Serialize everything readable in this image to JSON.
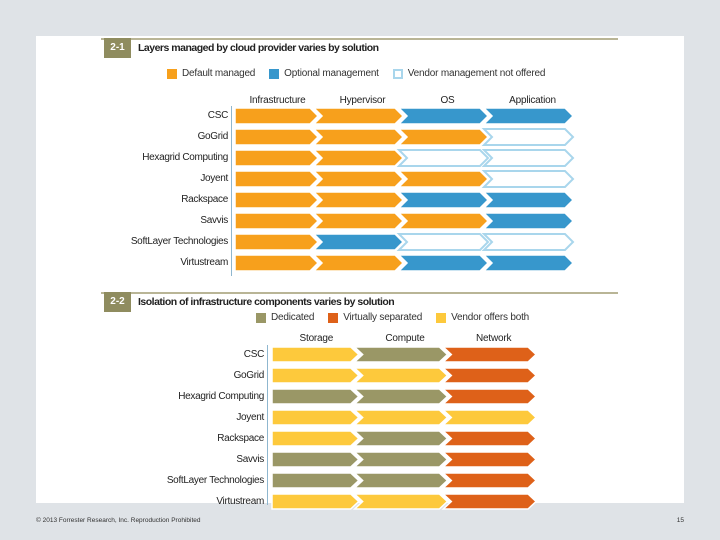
{
  "footer": {
    "copyright": "© 2013 Forrester Research, Inc. Reproduction Prohibited",
    "page_number": "15"
  },
  "chart_data": [
    {
      "type": "table",
      "figure_number": "2-1",
      "title": "Layers managed by cloud provider varies by solution",
      "legend": [
        {
          "key": "default",
          "label": "Default managed",
          "color": "#f7a01c",
          "fill": true
        },
        {
          "key": "optional",
          "label": "Optional management",
          "color": "#3797cc",
          "fill": true
        },
        {
          "key": "none",
          "label": "Vendor management not offered",
          "color": "#a9d6ec",
          "fill": false
        }
      ],
      "columns": [
        "Infrastructure",
        "Hypervisor",
        "OS",
        "Application"
      ],
      "rows": [
        {
          "label": "CSC",
          "values": [
            "default",
            "default",
            "optional",
            "optional"
          ]
        },
        {
          "label": "GoGrid",
          "values": [
            "default",
            "default",
            "default",
            "none"
          ]
        },
        {
          "label": "Hexagrid Computing",
          "values": [
            "default",
            "default",
            "none",
            "none"
          ]
        },
        {
          "label": "Joyent",
          "values": [
            "default",
            "default",
            "default",
            "none"
          ]
        },
        {
          "label": "Rackspace",
          "values": [
            "default",
            "default",
            "optional",
            "optional"
          ]
        },
        {
          "label": "Savvis",
          "values": [
            "default",
            "default",
            "default",
            "optional"
          ]
        },
        {
          "label": "SoftLayer Technologies",
          "values": [
            "default",
            "optional",
            "none",
            "none"
          ]
        },
        {
          "label": "Virtustream",
          "values": [
            "default",
            "default",
            "optional",
            "optional"
          ]
        }
      ]
    },
    {
      "type": "table",
      "figure_number": "2-2",
      "title": "Isolation of infrastructure components varies by solution",
      "legend": [
        {
          "key": "dedicated",
          "label": "Dedicated",
          "color": "#9a9766",
          "fill": true
        },
        {
          "key": "virtual",
          "label": "Virtually separated",
          "color": "#de6119",
          "fill": true
        },
        {
          "key": "both",
          "label": "Vendor offers both",
          "color": "#fdc93c",
          "fill": true
        }
      ],
      "columns": [
        "Storage",
        "Compute",
        "Network"
      ],
      "rows": [
        {
          "label": "CSC",
          "values": [
            "both",
            "dedicated",
            "virtual"
          ]
        },
        {
          "label": "GoGrid",
          "values": [
            "both",
            "both",
            "virtual"
          ]
        },
        {
          "label": "Hexagrid Computing",
          "values": [
            "dedicated",
            "dedicated",
            "virtual"
          ]
        },
        {
          "label": "Joyent",
          "values": [
            "both",
            "both",
            "both"
          ]
        },
        {
          "label": "Rackspace",
          "values": [
            "both",
            "dedicated",
            "virtual"
          ]
        },
        {
          "label": "Savvis",
          "values": [
            "dedicated",
            "dedicated",
            "virtual"
          ]
        },
        {
          "label": "SoftLayer Technologies",
          "values": [
            "dedicated",
            "dedicated",
            "virtual"
          ]
        },
        {
          "label": "Virtustream",
          "values": [
            "both",
            "both",
            "virtual"
          ]
        }
      ]
    }
  ]
}
